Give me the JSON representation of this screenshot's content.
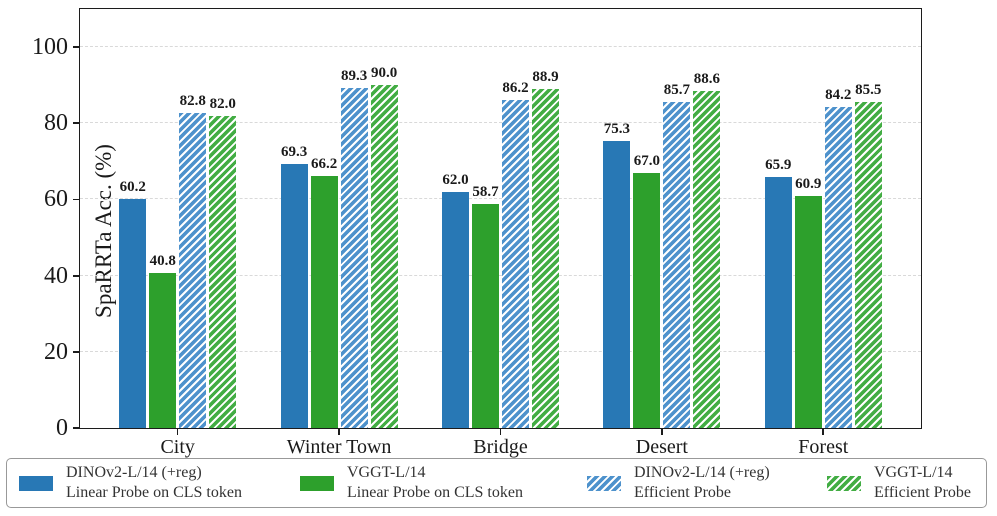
{
  "chart_data": {
    "type": "bar",
    "title": "",
    "xlabel": "",
    "ylabel": "SpaRRTa Acc. (%)",
    "ylim": [
      0,
      110
    ],
    "yticks": [
      0,
      20,
      40,
      60,
      80,
      100
    ],
    "grid": "horizontal-dashed",
    "legend_position": "bottom",
    "categories": [
      "City",
      "Winter Town",
      "Bridge",
      "Desert",
      "Forest"
    ],
    "series": [
      {
        "name": "DINOv2-L/14 (+reg) Linear Probe on CLS token",
        "legend_line1": "DINOv2-L/14 (+reg)",
        "legend_line2": "Linear Probe on CLS token",
        "style": "solid",
        "color": "#2878b5",
        "values": [
          60.2,
          69.3,
          62.0,
          75.3,
          65.9
        ]
      },
      {
        "name": "VGGT-L/14 Linear Probe on CLS token",
        "legend_line1": "VGGT-L/14",
        "legend_line2": "Linear Probe on CLS token",
        "style": "solid",
        "color": "#2da02c",
        "values": [
          40.8,
          66.2,
          58.7,
          67.0,
          60.9
        ]
      },
      {
        "name": "DINOv2-L/14 (+reg) Efficient Probe",
        "legend_line1": "DINOv2-L/14 (+reg)",
        "legend_line2": "Efficient Probe",
        "style": "hatched",
        "color": "#4e92cc",
        "hatch_color": "#ffffff",
        "values": [
          82.8,
          89.3,
          86.2,
          85.7,
          84.2
        ]
      },
      {
        "name": "VGGT-L/14 Efficient Probe",
        "legend_line1": "VGGT-L/14",
        "legend_line2": "Efficient Probe",
        "style": "hatched",
        "color": "#43ad44",
        "hatch_color": "#ffffff",
        "values": [
          82.0,
          90.0,
          88.9,
          88.6,
          85.5
        ]
      }
    ]
  }
}
